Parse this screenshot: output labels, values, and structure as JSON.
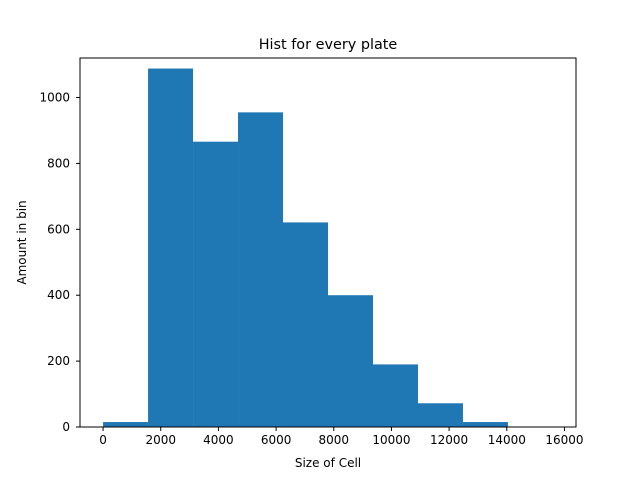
{
  "chart_data": {
    "type": "bar",
    "subtype": "histogram",
    "title": "Hist for every plate",
    "xlabel": "Size of Cell",
    "ylabel": "Amount in bin",
    "bin_edges": [
      0,
      1560,
      3120,
      4680,
      6240,
      7800,
      9360,
      10920,
      12480,
      14040,
      15600
    ],
    "values": [
      15,
      1088,
      866,
      955,
      621,
      400,
      190,
      72,
      15,
      0
    ],
    "xlim": [
      -800,
      16400
    ],
    "ylim": [
      0,
      1120
    ],
    "xticks": [
      0,
      2000,
      4000,
      6000,
      8000,
      10000,
      12000,
      14000,
      16000
    ],
    "xtick_labels": [
      "0",
      "2000",
      "4000",
      "6000",
      "8000",
      "10000",
      "12000",
      "14000",
      "16000"
    ],
    "yticks": [
      0,
      200,
      400,
      600,
      800,
      1000
    ],
    "ytick_labels": [
      "0",
      "200",
      "400",
      "600",
      "800",
      "1000"
    ],
    "bar_color": "#1f77b4",
    "grid": false,
    "legend": "none"
  }
}
